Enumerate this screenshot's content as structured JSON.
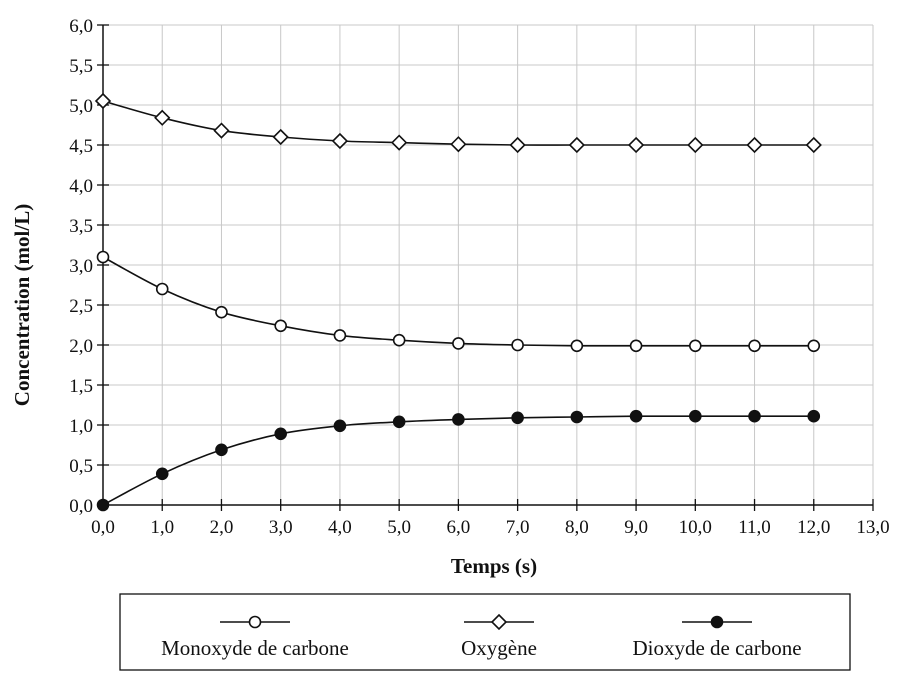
{
  "chart_data": {
    "type": "line",
    "title": "",
    "xlabel": "Temps (s)",
    "ylabel": "Concentration (mol/L)",
    "xlim": [
      0,
      13
    ],
    "ylim": [
      0,
      6
    ],
    "x_ticks": [
      "0,0",
      "1,0",
      "2,0",
      "3,0",
      "4,0",
      "5,0",
      "6,0",
      "7,0",
      "8,0",
      "9,0",
      "10,0",
      "11,0",
      "12,0",
      "13,0"
    ],
    "y_ticks": [
      "0,0",
      "0,5",
      "1,0",
      "1,5",
      "2,0",
      "2,5",
      "3,0",
      "3,5",
      "4,0",
      "4,5",
      "5,0",
      "5,5",
      "6,0"
    ],
    "grid": true,
    "legend_position": "bottom",
    "x": [
      0,
      1,
      2,
      3,
      4,
      5,
      6,
      7,
      8,
      9,
      10,
      11,
      12
    ],
    "series": [
      {
        "name": "Monoxyde de carbone",
        "marker": "circle-open",
        "values": [
          3.1,
          2.7,
          2.41,
          2.24,
          2.12,
          2.06,
          2.02,
          2.0,
          1.99,
          1.99,
          1.99,
          1.99,
          1.99
        ]
      },
      {
        "name": "Oxygène",
        "marker": "diamond-open",
        "values": [
          5.05,
          4.84,
          4.68,
          4.6,
          4.55,
          4.53,
          4.51,
          4.5,
          4.5,
          4.5,
          4.5,
          4.5,
          4.5
        ]
      },
      {
        "name": "Dioxyde de carbone",
        "marker": "circle-filled",
        "values": [
          0.0,
          0.39,
          0.69,
          0.89,
          0.99,
          1.04,
          1.07,
          1.09,
          1.1,
          1.11,
          1.11,
          1.11,
          1.11
        ]
      }
    ],
    "colors": {
      "line": "#111111",
      "grid": "#c8c8c8",
      "marker_fill_open": "#ffffff",
      "marker_fill_filled": "#111111"
    }
  }
}
